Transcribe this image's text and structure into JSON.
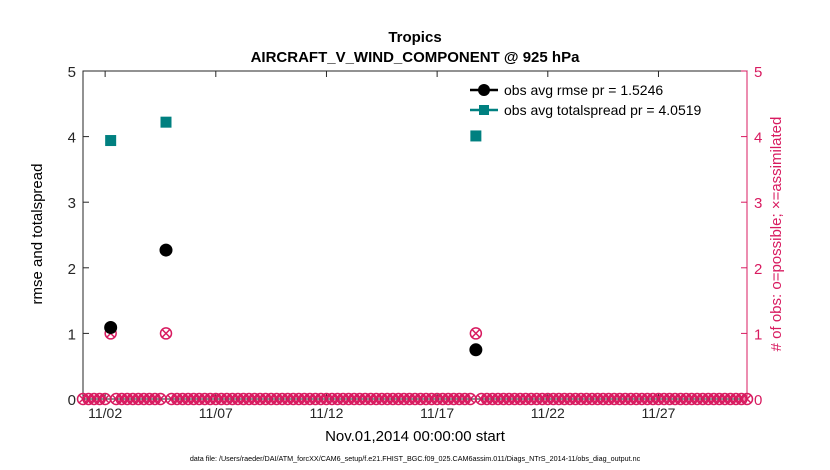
{
  "chart_data": {
    "type": "scatter",
    "title": "Tropics",
    "subtitle": "AIRCRAFT_V_WIND_COMPONENT @ 925 hPa",
    "xlabel": "Nov.01,2014 00:00:00 start",
    "ylabel": "rmse and totalspread",
    "y2label": "# of obs: o=possible; ×=assimilated",
    "footnote": "data file: /Users/raeder/DAI/ATM_forcXX/CAM6_setup/f.e21.FHIST_BGC.f09_025.CAM6assim.011/Diags_NTrS_2014-11/obs_diag_output.nc",
    "xlim": [
      1,
      31
    ],
    "ylim": [
      0,
      5
    ],
    "y2lim": [
      0,
      5
    ],
    "x_ticks": [
      {
        "value": 2,
        "label": "11/02"
      },
      {
        "value": 7,
        "label": "11/07"
      },
      {
        "value": 12,
        "label": "11/12"
      },
      {
        "value": 17,
        "label": "11/17"
      },
      {
        "value": 22,
        "label": "11/22"
      },
      {
        "value": 27,
        "label": "11/27"
      }
    ],
    "y_ticks": [
      "0",
      "1",
      "2",
      "3",
      "4",
      "5"
    ],
    "y2_ticks": [
      "0",
      "1",
      "2",
      "3",
      "4",
      "5"
    ],
    "legend_position": "top-right",
    "series": [
      {
        "name": "obs avg rmse pr = 1.5246",
        "color": "#000000",
        "marker": "circle",
        "axis": "left",
        "points": [
          [
            2.25,
            1.09
          ],
          [
            4.75,
            2.27
          ],
          [
            18.75,
            0.75
          ]
        ]
      },
      {
        "name": "obs avg totalspread pr = 4.0519",
        "color": "#008080",
        "marker": "square",
        "axis": "left",
        "points": [
          [
            2.25,
            3.94
          ],
          [
            4.75,
            4.22
          ],
          [
            18.75,
            4.01
          ]
        ]
      }
    ],
    "obs_counts": {
      "color": "#d81b60",
      "axis": "right",
      "start": 1.0,
      "step": 0.25,
      "count": 121,
      "nonzero": [
        [
          2.25,
          1
        ],
        [
          4.75,
          1
        ],
        [
          18.75,
          1
        ]
      ]
    }
  }
}
